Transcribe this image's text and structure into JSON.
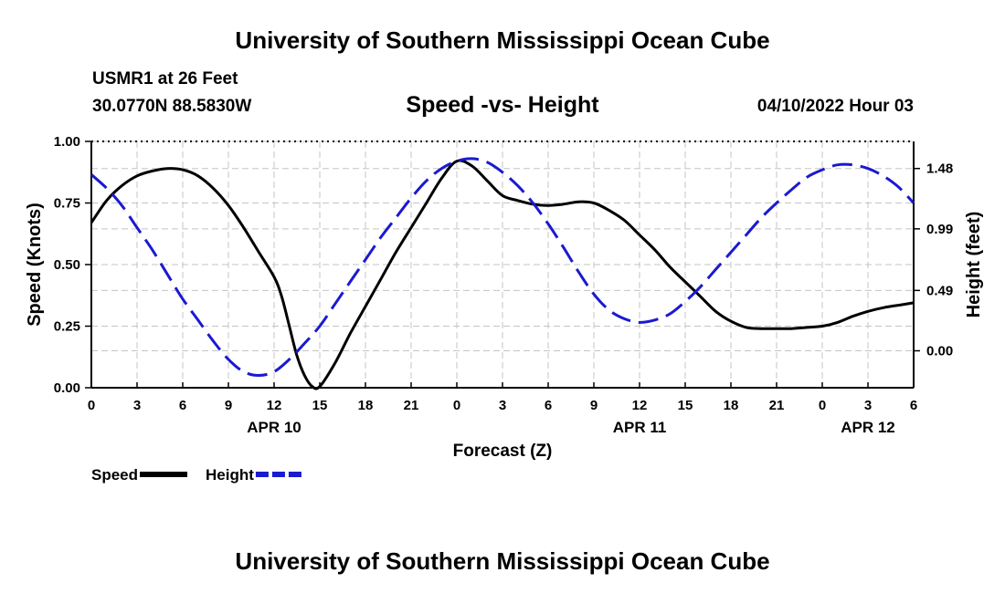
{
  "header": {
    "title": "University of Southern Mississippi Ocean Cube",
    "station": "USMR1 at 26 Feet",
    "coords": "30.0770N  88.5830W",
    "subtitle": "Speed -vs- Height",
    "datetime": "04/10/2022 Hour 03"
  },
  "footer": {
    "title": "University of Southern Mississippi Ocean Cube"
  },
  "chart_data": {
    "type": "line",
    "title": "Speed -vs- Height",
    "xlabel": "Forecast (Z)",
    "ylabel": "Speed (Knots)",
    "y2label": "Height (feet)",
    "x_range_hours": [
      0,
      54
    ],
    "x_tick_hours": [
      0,
      3,
      6,
      9,
      12,
      15,
      18,
      21,
      24,
      27,
      30,
      33,
      36,
      39,
      42,
      45,
      48,
      51,
      54
    ],
    "x_tick_labels": [
      "0",
      "3",
      "6",
      "9",
      "12",
      "15",
      "18",
      "21",
      "0",
      "3",
      "6",
      "9",
      "12",
      "15",
      "18",
      "21",
      "0",
      "3",
      "6"
    ],
    "date_labels": [
      {
        "hour": 12,
        "label": "APR 10"
      },
      {
        "hour": 36,
        "label": "APR 11"
      },
      {
        "hour": 51,
        "label": "APR 12"
      }
    ],
    "ylim": [
      0,
      1.0
    ],
    "y_ticks": [
      0,
      0.25,
      0.5,
      0.75,
      1.0
    ],
    "y_tick_labels": [
      "0.00",
      "0.25",
      "0.50",
      "0.75",
      "1.00"
    ],
    "y2lim": [
      -0.3,
      1.7
    ],
    "y2_ticks": [
      0.0,
      0.49,
      0.99,
      1.48
    ],
    "y2_tick_labels": [
      "0.00",
      "0.49",
      "0.99",
      "1.48"
    ],
    "grid": true,
    "legend_position": "bottom-left",
    "series": [
      {
        "name": "Speed",
        "axis": "left",
        "color": "#000000",
        "style": "solid",
        "x": [
          0,
          1,
          2,
          3,
          4,
          5,
          6,
          7,
          8,
          9,
          10,
          11,
          12,
          12.5,
          13,
          13.5,
          14,
          14.5,
          15,
          16,
          17,
          18,
          19,
          20,
          21,
          22,
          23,
          24,
          25,
          26,
          27,
          28,
          29,
          30,
          31,
          32,
          33,
          34,
          35,
          36,
          37,
          38,
          39,
          40,
          41,
          42,
          43,
          44,
          45,
          46,
          47,
          48,
          49,
          50,
          51,
          52,
          53,
          54
        ],
        "values": [
          0.67,
          0.76,
          0.82,
          0.86,
          0.88,
          0.89,
          0.885,
          0.86,
          0.81,
          0.74,
          0.65,
          0.55,
          0.45,
          0.37,
          0.25,
          0.13,
          0.05,
          0.005,
          0.005,
          0.1,
          0.22,
          0.33,
          0.44,
          0.55,
          0.65,
          0.75,
          0.85,
          0.92,
          0.9,
          0.84,
          0.78,
          0.76,
          0.745,
          0.74,
          0.745,
          0.755,
          0.75,
          0.72,
          0.68,
          0.62,
          0.56,
          0.49,
          0.43,
          0.37,
          0.31,
          0.27,
          0.245,
          0.24,
          0.24,
          0.24,
          0.245,
          0.25,
          0.265,
          0.29,
          0.31,
          0.325,
          0.335,
          0.345
        ]
      },
      {
        "name": "Height",
        "axis": "right",
        "color": "#1a1ad0",
        "style": "dashed",
        "x": [
          0,
          1,
          2,
          3,
          4,
          5,
          6,
          7,
          8,
          9,
          10,
          11,
          12,
          13,
          14,
          15,
          16,
          17,
          18,
          19,
          20,
          21,
          22,
          23,
          24,
          25,
          26,
          27,
          28,
          29,
          30,
          31,
          32,
          33,
          34,
          35,
          36,
          37,
          38,
          39,
          40,
          41,
          42,
          43,
          44,
          45,
          46,
          47,
          48,
          49,
          50,
          51,
          52,
          53,
          54
        ],
        "values": [
          1.43,
          1.32,
          1.18,
          1.0,
          0.82,
          0.62,
          0.42,
          0.25,
          0.08,
          -0.07,
          -0.17,
          -0.2,
          -0.17,
          -0.07,
          0.06,
          0.2,
          0.38,
          0.56,
          0.74,
          0.92,
          1.08,
          1.24,
          1.38,
          1.48,
          1.54,
          1.56,
          1.53,
          1.45,
          1.34,
          1.2,
          1.03,
          0.84,
          0.64,
          0.46,
          0.33,
          0.26,
          0.23,
          0.25,
          0.3,
          0.4,
          0.52,
          0.66,
          0.8,
          0.94,
          1.08,
          1.2,
          1.31,
          1.41,
          1.47,
          1.51,
          1.51,
          1.48,
          1.42,
          1.33,
          1.2
        ]
      }
    ]
  }
}
